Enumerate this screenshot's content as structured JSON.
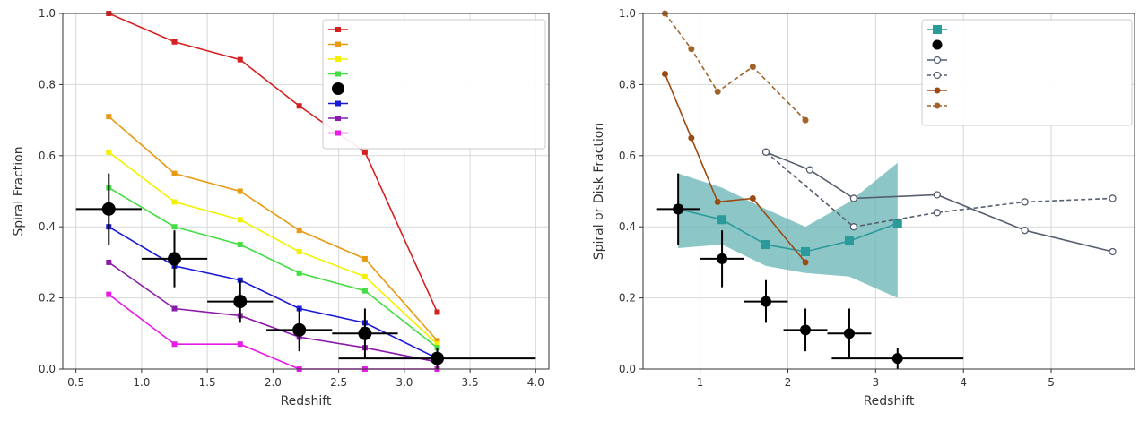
{
  "chart_data": [
    {
      "type": "line",
      "xlabel": "Redshift",
      "ylabel": "Spiral Fraction",
      "xlim": [
        0.4,
        4.1
      ],
      "ylim": [
        0,
        1.0
      ],
      "xticks": [
        "0.5",
        "1.0",
        "1.5",
        "2.0",
        "2.5",
        "3.0",
        "3.5",
        "4.0"
      ],
      "yticks": [
        "0.0",
        "0.2",
        "0.4",
        "0.6",
        "0.8",
        "1.0"
      ],
      "grid": true,
      "legend_position": "top-right",
      "series": [
        {
          "name": "",
          "color": "#d62020",
          "dash": false,
          "x": [
            0.75,
            1.25,
            1.75,
            2.2,
            2.7,
            3.25
          ],
          "y": [
            1.0,
            0.92,
            0.87,
            0.74,
            0.61,
            0.16
          ]
        },
        {
          "name": "",
          "color": "#e89a10",
          "dash": false,
          "x": [
            0.75,
            1.25,
            1.75,
            2.2,
            2.7,
            3.25
          ],
          "y": [
            0.71,
            0.55,
            0.5,
            0.39,
            0.31,
            0.08
          ]
        },
        {
          "name": "",
          "color": "#f2f200",
          "dash": false,
          "x": [
            0.75,
            1.25,
            1.75,
            2.2,
            2.7,
            3.25
          ],
          "y": [
            0.61,
            0.47,
            0.42,
            0.33,
            0.26,
            0.07
          ]
        },
        {
          "name": "",
          "color": "#44dd44",
          "dash": false,
          "x": [
            0.75,
            1.25,
            1.75,
            2.2,
            2.7,
            3.25
          ],
          "y": [
            0.51,
            0.4,
            0.35,
            0.27,
            0.22,
            0.06
          ]
        },
        {
          "name": "",
          "color": "#1a1ad6",
          "dash": false,
          "x": [
            0.75,
            1.25,
            1.75,
            2.2,
            2.7,
            3.25
          ],
          "y": [
            0.4,
            0.29,
            0.25,
            0.17,
            0.13,
            0.03
          ]
        },
        {
          "name": "",
          "color": "#8a1aa8",
          "dash": false,
          "x": [
            0.75,
            1.25,
            1.75,
            2.2,
            2.7,
            3.25
          ],
          "y": [
            0.3,
            0.17,
            0.15,
            0.09,
            0.06,
            0.02
          ]
        },
        {
          "name": "",
          "color": "#e81ae8",
          "dash": false,
          "x": [
            0.75,
            1.25,
            1.75,
            2.2,
            2.7,
            3.25
          ],
          "y": [
            0.21,
            0.07,
            0.07,
            0.0,
            0.0,
            0.0
          ]
        }
      ],
      "observed": {
        "name": "",
        "x": [
          0.75,
          1.25,
          1.75,
          2.2,
          2.7,
          3.25
        ],
        "y": [
          0.45,
          0.31,
          0.19,
          0.11,
          0.1,
          0.03
        ],
        "xerr": [
          0.25,
          0.25,
          0.25,
          0.25,
          0.25,
          0.75
        ],
        "yerr": [
          0.1,
          0.08,
          0.06,
          0.06,
          0.07,
          0.03
        ]
      }
    },
    {
      "type": "line",
      "xlabel": "Redshift",
      "ylabel": "Spiral or Disk Fraction",
      "xlim": [
        0.35,
        5.95
      ],
      "ylim": [
        0,
        1.0
      ],
      "xticks": [
        "1",
        "2",
        "3",
        "4",
        "5"
      ],
      "yticks": [
        "0.0",
        "0.2",
        "0.4",
        "0.6",
        "0.8",
        "1.0"
      ],
      "grid": true,
      "legend_position": "top-right",
      "band": {
        "color": "#6fb8b8",
        "x": [
          0.75,
          1.25,
          1.75,
          2.2,
          2.7,
          3.25
        ],
        "lower": [
          0.34,
          0.35,
          0.29,
          0.27,
          0.26,
          0.2
        ],
        "upper": [
          0.55,
          0.51,
          0.45,
          0.4,
          0.47,
          0.58
        ]
      },
      "series": [
        {
          "name": "",
          "color": "#2a9a9a",
          "dash": false,
          "marker": "square",
          "x": [
            0.75,
            1.25,
            1.75,
            2.2,
            2.7,
            3.25
          ],
          "y": [
            0.45,
            0.42,
            0.35,
            0.33,
            0.36,
            0.41
          ]
        },
        {
          "name": "",
          "color": "#555f70",
          "dash": false,
          "marker": "circle-open",
          "x": [
            1.75,
            2.25,
            2.75,
            3.7,
            4.7,
            5.7
          ],
          "y": [
            0.61,
            0.56,
            0.48,
            0.49,
            0.39,
            0.33
          ]
        },
        {
          "name": "",
          "color": "#555f70",
          "dash": true,
          "marker": "circle-open",
          "x": [
            1.75,
            2.75,
            3.7,
            4.7,
            5.7
          ],
          "y": [
            0.61,
            0.4,
            0.44,
            0.47,
            0.48
          ]
        },
        {
          "name": "",
          "color": "#9c4a14",
          "dash": false,
          "marker": "circle",
          "x": [
            0.6,
            0.9,
            1.2,
            1.6,
            2.2
          ],
          "y": [
            0.83,
            0.65,
            0.47,
            0.48,
            0.3
          ]
        },
        {
          "name": "",
          "color": "#a0642a",
          "dash": true,
          "marker": "circle",
          "x": [
            0.6,
            0.9,
            1.2,
            1.6,
            2.2
          ],
          "y": [
            1.0,
            0.9,
            0.78,
            0.85,
            0.7
          ]
        }
      ],
      "observed": {
        "name": "",
        "x": [
          0.75,
          1.25,
          1.75,
          2.2,
          2.7,
          3.25
        ],
        "y": [
          0.45,
          0.31,
          0.19,
          0.11,
          0.1,
          0.03
        ],
        "xerr": [
          0.25,
          0.25,
          0.25,
          0.25,
          0.25,
          0.75
        ],
        "yerr": [
          0.1,
          0.08,
          0.06,
          0.06,
          0.07,
          0.03
        ]
      }
    }
  ]
}
